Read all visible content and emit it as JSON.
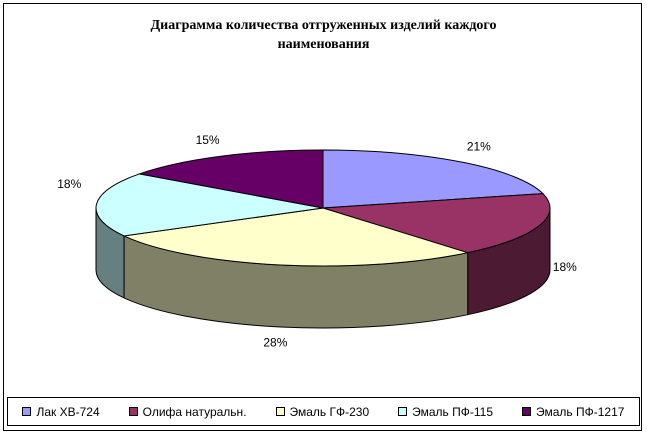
{
  "chart_data": {
    "type": "pie",
    "style": "3d",
    "title": "Диаграмма количества отгруженных изделий каждого\nнаименования",
    "slices": [
      {
        "name": "Лак ХВ-724",
        "value": 21,
        "label": "21%",
        "color": "#9999ff",
        "side": "#6e6eb8"
      },
      {
        "name": "Олифа натуральн.",
        "value": 18,
        "label": "18%",
        "color": "#993366",
        "side": "#4d1a33"
      },
      {
        "name": "Эмаль ГФ-230",
        "value": 28,
        "label": "28%",
        "color": "#ffffcc",
        "side": "#808066"
      },
      {
        "name": "Эмаль ПФ-115",
        "value": 18,
        "label": "18%",
        "color": "#ccffff",
        "side": "#668080"
      },
      {
        "name": "Эмаль ПФ-1217",
        "value": 15,
        "label": "15%",
        "color": "#660066",
        "side": "#330033"
      }
    ],
    "legend_position": "bottom"
  }
}
